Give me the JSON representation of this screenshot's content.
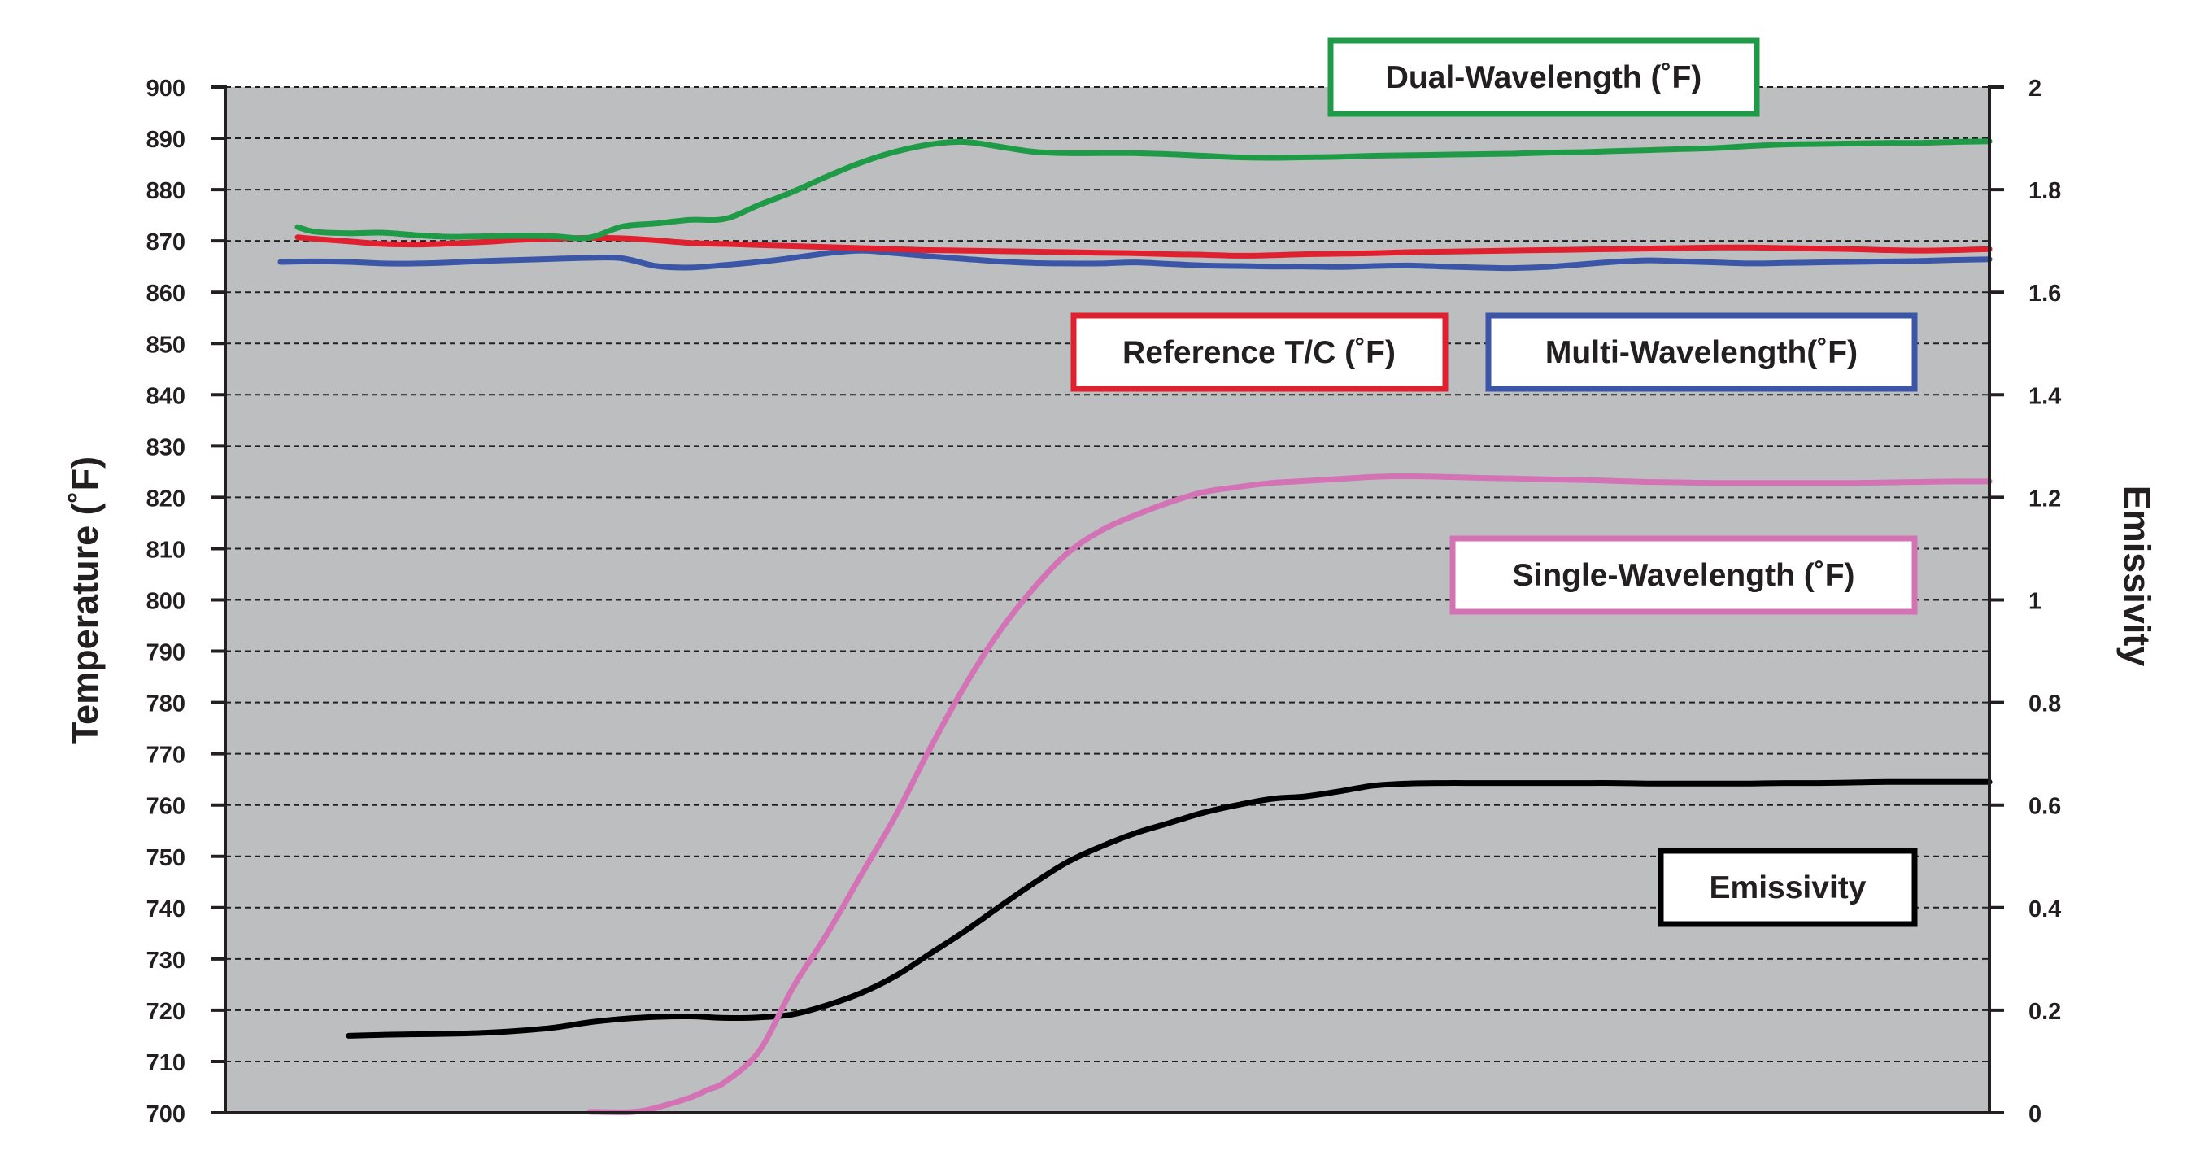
{
  "chart_data": {
    "type": "line",
    "title": "",
    "xlabel": "",
    "ylabel": "Temperature (˚F)",
    "y2label": "Emissivity",
    "ylim": [
      700,
      900
    ],
    "y2lim": [
      0,
      2
    ],
    "yticks": [
      "700",
      "710",
      "720",
      "730",
      "740",
      "750",
      "760",
      "770",
      "780",
      "790",
      "800",
      "810",
      "820",
      "830",
      "840",
      "850",
      "860",
      "870",
      "880",
      "890",
      "900"
    ],
    "y2ticks": [
      "0",
      "0.2",
      "0.4",
      "0.6",
      "0.8",
      "1",
      "1.2",
      "1.4",
      "1.6",
      "1.8",
      "2"
    ],
    "grid": true,
    "background": "#bcbec0",
    "x": [
      0,
      2,
      4,
      6,
      8,
      10,
      12,
      14,
      16,
      18,
      20,
      22,
      24,
      26,
      28,
      30,
      32,
      34,
      36,
      38,
      40,
      42,
      44,
      46,
      48,
      50,
      52,
      54,
      56,
      58,
      60,
      62,
      64,
      66,
      68,
      70,
      72,
      74,
      76,
      78,
      80,
      82,
      84,
      86,
      88,
      90,
      92,
      94,
      96,
      98,
      100
    ],
    "series": [
      {
        "name": "Dual-Wavelength (˚F)",
        "axis": "left",
        "color": "#1f9b48",
        "x": [
          1,
          2,
          4,
          6,
          8,
          10,
          12,
          14,
          16,
          18,
          20,
          22,
          24,
          26,
          28,
          30,
          32,
          34,
          36,
          38,
          40,
          42,
          44,
          46,
          48,
          50,
          52,
          54,
          56,
          58,
          60,
          62,
          64,
          66,
          68,
          70,
          72,
          74,
          76,
          78,
          80,
          82,
          84,
          86,
          88,
          90,
          92,
          94,
          96,
          98,
          100
        ],
        "values": [
          872.7,
          871.8,
          871.5,
          871.6,
          871.1,
          870.8,
          870.9,
          871.0,
          870.9,
          870.6,
          872.8,
          873.4,
          874.1,
          874.3,
          877.0,
          879.6,
          882.6,
          885.3,
          887.4,
          888.8,
          889.3,
          888.4,
          887.4,
          887.1,
          887.1,
          887.1,
          886.9,
          886.6,
          886.3,
          886.2,
          886.3,
          886.4,
          886.6,
          886.7,
          886.8,
          886.9,
          887.0,
          887.2,
          887.3,
          887.5,
          887.7,
          887.9,
          888.1,
          888.5,
          888.8,
          888.9,
          889.0,
          889.1,
          889.1,
          889.3,
          889.4
        ]
      },
      {
        "name": "Reference T/C (˚F)",
        "axis": "left",
        "color": "#e0202f",
        "x": [
          1,
          2,
          4,
          6,
          8,
          10,
          12,
          14,
          16,
          18,
          20,
          22,
          24,
          26,
          28,
          30,
          32,
          34,
          36,
          38,
          40,
          42,
          44,
          46,
          48,
          50,
          52,
          54,
          56,
          58,
          60,
          62,
          64,
          66,
          68,
          70,
          72,
          74,
          76,
          78,
          80,
          82,
          84,
          86,
          88,
          90,
          92,
          94,
          96,
          98,
          100
        ],
        "values": [
          870.7,
          870.4,
          869.9,
          869.4,
          869.3,
          869.5,
          869.8,
          870.2,
          870.4,
          870.6,
          870.5,
          870.1,
          869.6,
          869.4,
          869.2,
          869.0,
          868.8,
          868.6,
          868.4,
          868.2,
          868.1,
          868.0,
          867.9,
          867.8,
          867.7,
          867.6,
          867.4,
          867.3,
          867.1,
          867.2,
          867.4,
          867.5,
          867.6,
          867.8,
          867.9,
          868.0,
          868.1,
          868.2,
          868.3,
          868.4,
          868.5,
          868.6,
          868.7,
          868.7,
          868.6,
          868.5,
          868.4,
          868.2,
          868.1,
          868.2,
          868.4
        ]
      },
      {
        "name": "Multi-Wavelength(˚F)",
        "axis": "left",
        "color": "#3b56a6",
        "x": [
          0,
          2,
          4,
          6,
          8,
          10,
          12,
          14,
          16,
          18,
          20,
          22,
          24,
          26,
          28,
          30,
          32,
          34,
          36,
          38,
          40,
          42,
          44,
          46,
          48,
          50,
          52,
          54,
          56,
          58,
          60,
          62,
          64,
          66,
          68,
          70,
          72,
          74,
          76,
          78,
          80,
          82,
          84,
          86,
          88,
          90,
          92,
          94,
          96,
          98,
          100
        ],
        "values": [
          865.9,
          866.0,
          865.9,
          865.6,
          865.6,
          865.8,
          866.1,
          866.3,
          866.5,
          866.7,
          866.6,
          865.1,
          864.8,
          865.3,
          865.9,
          866.7,
          867.6,
          868.1,
          867.6,
          867.0,
          866.5,
          866.0,
          865.7,
          865.6,
          865.6,
          865.8,
          865.5,
          865.2,
          865.1,
          865.0,
          865.0,
          864.9,
          865.1,
          865.2,
          865.0,
          864.8,
          864.7,
          864.9,
          865.4,
          865.9,
          866.2,
          866.0,
          865.8,
          865.6,
          865.7,
          865.8,
          865.9,
          866.0,
          866.1,
          866.3,
          866.4
        ]
      },
      {
        "name": "Single-Wavelength (˚F)",
        "axis": "left",
        "color": "#d373b6",
        "x": [
          18.1,
          20,
          21,
          22,
          24,
          25,
          26,
          28,
          30,
          32,
          34,
          36,
          38,
          40,
          42,
          44,
          46,
          48,
          50,
          52,
          54,
          56,
          58,
          60,
          62,
          64,
          66,
          68,
          70,
          72,
          74,
          76,
          78,
          80,
          82,
          84,
          86,
          88,
          90,
          92,
          94,
          96,
          98,
          100
        ],
        "values": [
          700.2,
          700.1,
          700.3,
          701.0,
          703.0,
          704.5,
          706.0,
          712.0,
          724.5,
          735.0,
          746.5,
          758.0,
          771.0,
          783.0,
          793.5,
          802.0,
          809.0,
          813.5,
          816.5,
          819.0,
          821.0,
          822.0,
          822.8,
          823.2,
          823.6,
          824.0,
          824.1,
          824.0,
          823.8,
          823.7,
          823.5,
          823.4,
          823.2,
          823.0,
          822.9,
          822.8,
          822.8,
          822.8,
          822.8,
          822.8,
          822.9,
          823.0,
          823.1,
          823.1
        ]
      },
      {
        "name": "Emissivity",
        "axis": "right",
        "color": "#000000",
        "x": [
          4,
          6,
          8,
          10,
          12,
          14,
          16,
          18,
          20,
          22,
          24,
          26,
          28,
          30,
          32,
          34,
          36,
          38,
          40,
          42,
          44,
          46,
          48,
          50,
          52,
          54,
          56,
          58,
          60,
          62,
          64,
          66,
          68,
          70,
          72,
          74,
          76,
          78,
          80,
          82,
          84,
          86,
          88,
          90,
          92,
          94,
          96,
          98,
          100
        ],
        "values": [
          0.15,
          0.152,
          0.153,
          0.154,
          0.156,
          0.16,
          0.166,
          0.176,
          0.183,
          0.187,
          0.188,
          0.185,
          0.186,
          0.192,
          0.21,
          0.234,
          0.267,
          0.31,
          0.353,
          0.4,
          0.446,
          0.488,
          0.519,
          0.545,
          0.565,
          0.585,
          0.6,
          0.612,
          0.617,
          0.627,
          0.638,
          0.642,
          0.643,
          0.643,
          0.643,
          0.643,
          0.643,
          0.643,
          0.642,
          0.642,
          0.642,
          0.642,
          0.643,
          0.643,
          0.644,
          0.645,
          0.645,
          0.645,
          0.645
        ]
      }
    ],
    "legend_labels": {
      "dual": "Dual-Wavelength (˚F)",
      "reference": "Reference T/C (˚F)",
      "multi": "Multi-Wavelength(˚F)",
      "single": "Single-Wavelength (˚F)",
      "emissivity": "Emissivity"
    }
  }
}
